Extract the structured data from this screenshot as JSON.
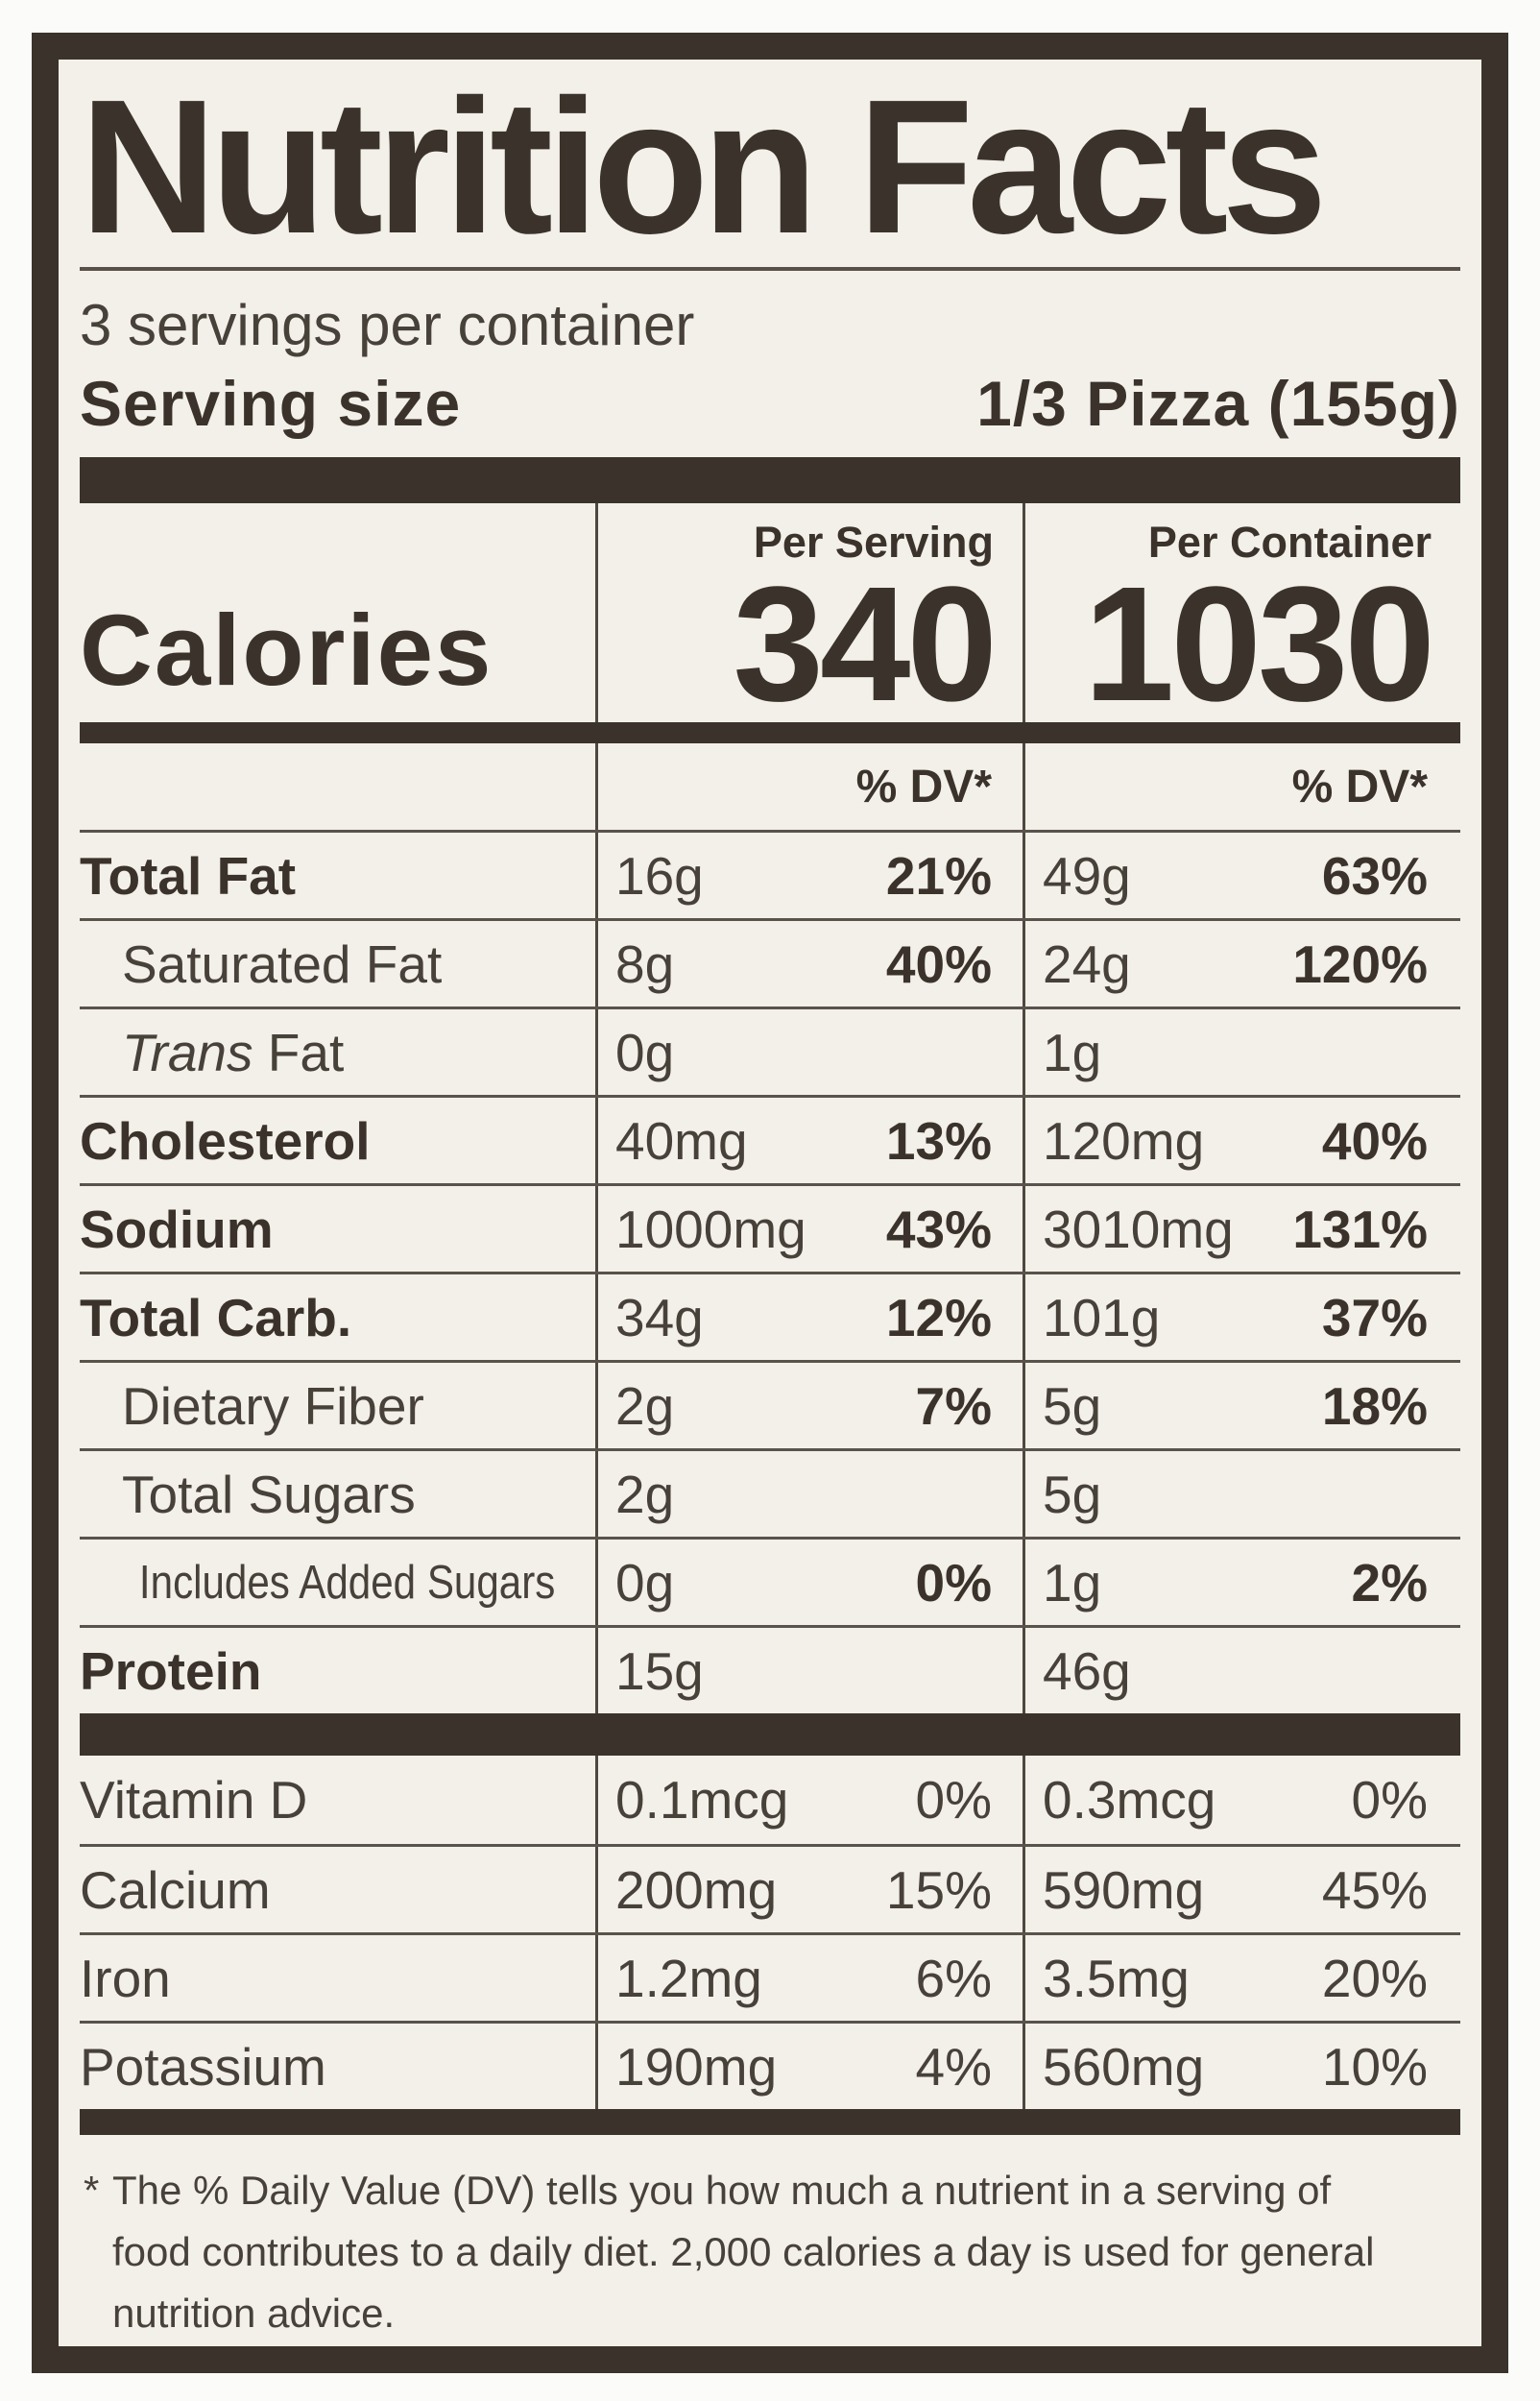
{
  "title": "Nutrition Facts",
  "servings_per_container": "3 servings per container",
  "serving_size": {
    "label": "Serving size",
    "value": "1/3 Pizza (155g)"
  },
  "calories": {
    "label": "Calories",
    "per_serving_header": "Per Serving",
    "per_container_header": "Per Container",
    "per_serving_value": "340",
    "per_container_value": "1030"
  },
  "dv_header": {
    "per_serving": "% DV*",
    "per_container": "% DV*"
  },
  "nutrients": [
    {
      "label": "Total Fat",
      "bold": true,
      "indent": 0,
      "qty_serving": "16g",
      "dv_serving": "21%",
      "qty_container": "49g",
      "dv_container": "63%"
    },
    {
      "label": "Saturated Fat",
      "bold": false,
      "indent": 1,
      "qty_serving": "8g",
      "dv_serving": "40%",
      "qty_container": "24g",
      "dv_container": "120%"
    },
    {
      "label": "Fat",
      "italic_prefix": "Trans",
      "bold": false,
      "indent": 1,
      "qty_serving": "0g",
      "dv_serving": "",
      "qty_container": "1g",
      "dv_container": ""
    },
    {
      "label": "Cholesterol",
      "bold": true,
      "indent": 0,
      "qty_serving": "40mg",
      "dv_serving": "13%",
      "qty_container": "120mg",
      "dv_container": "40%"
    },
    {
      "label": "Sodium",
      "bold": true,
      "indent": 0,
      "qty_serving": "1000mg",
      "dv_serving": "43%",
      "qty_container": "3010mg",
      "dv_container": "131%"
    },
    {
      "label": "Total Carb.",
      "bold": true,
      "indent": 0,
      "qty_serving": "34g",
      "dv_serving": "12%",
      "qty_container": "101g",
      "dv_container": "37%"
    },
    {
      "label": "Dietary Fiber",
      "bold": false,
      "indent": 1,
      "qty_serving": "2g",
      "dv_serving": "7%",
      "qty_container": "5g",
      "dv_container": "18%"
    },
    {
      "label": "Total Sugars",
      "bold": false,
      "indent": 1,
      "qty_serving": "2g",
      "dv_serving": "",
      "qty_container": "5g",
      "dv_container": ""
    },
    {
      "label": "Includes Added Sugars",
      "bold": false,
      "indent": 2,
      "condensed": true,
      "qty_serving": "0g",
      "dv_serving": "0%",
      "qty_container": "1g",
      "dv_container": "2%"
    },
    {
      "label": "Protein",
      "bold": true,
      "indent": 0,
      "qty_serving": "15g",
      "dv_serving": "",
      "qty_container": "46g",
      "dv_container": ""
    }
  ],
  "micronutrients": [
    {
      "label": "Vitamin D",
      "qty_serving": "0.1mcg",
      "dv_serving": "0%",
      "qty_container": "0.3mcg",
      "dv_container": "0%"
    },
    {
      "label": "Calcium",
      "qty_serving": "200mg",
      "dv_serving": "15%",
      "qty_container": "590mg",
      "dv_container": "45%"
    },
    {
      "label": "Iron",
      "qty_serving": "1.2mg",
      "dv_serving": "6%",
      "qty_container": "3.5mg",
      "dv_container": "20%"
    },
    {
      "label": "Potassium",
      "qty_serving": "190mg",
      "dv_serving": "4%",
      "qty_container": "560mg",
      "dv_container": "10%"
    }
  ],
  "footnote": {
    "marker": "*",
    "text": "The % Daily Value (DV) tells you how much a nutrient in a serving of food contributes to a daily diet. 2,000 calories a day is used for general nutrition advice."
  },
  "colors": {
    "ink": "#3b332b",
    "label_background": "#f2f0e9",
    "page_background": "#fbfbf9",
    "hairline": "#59534b"
  }
}
